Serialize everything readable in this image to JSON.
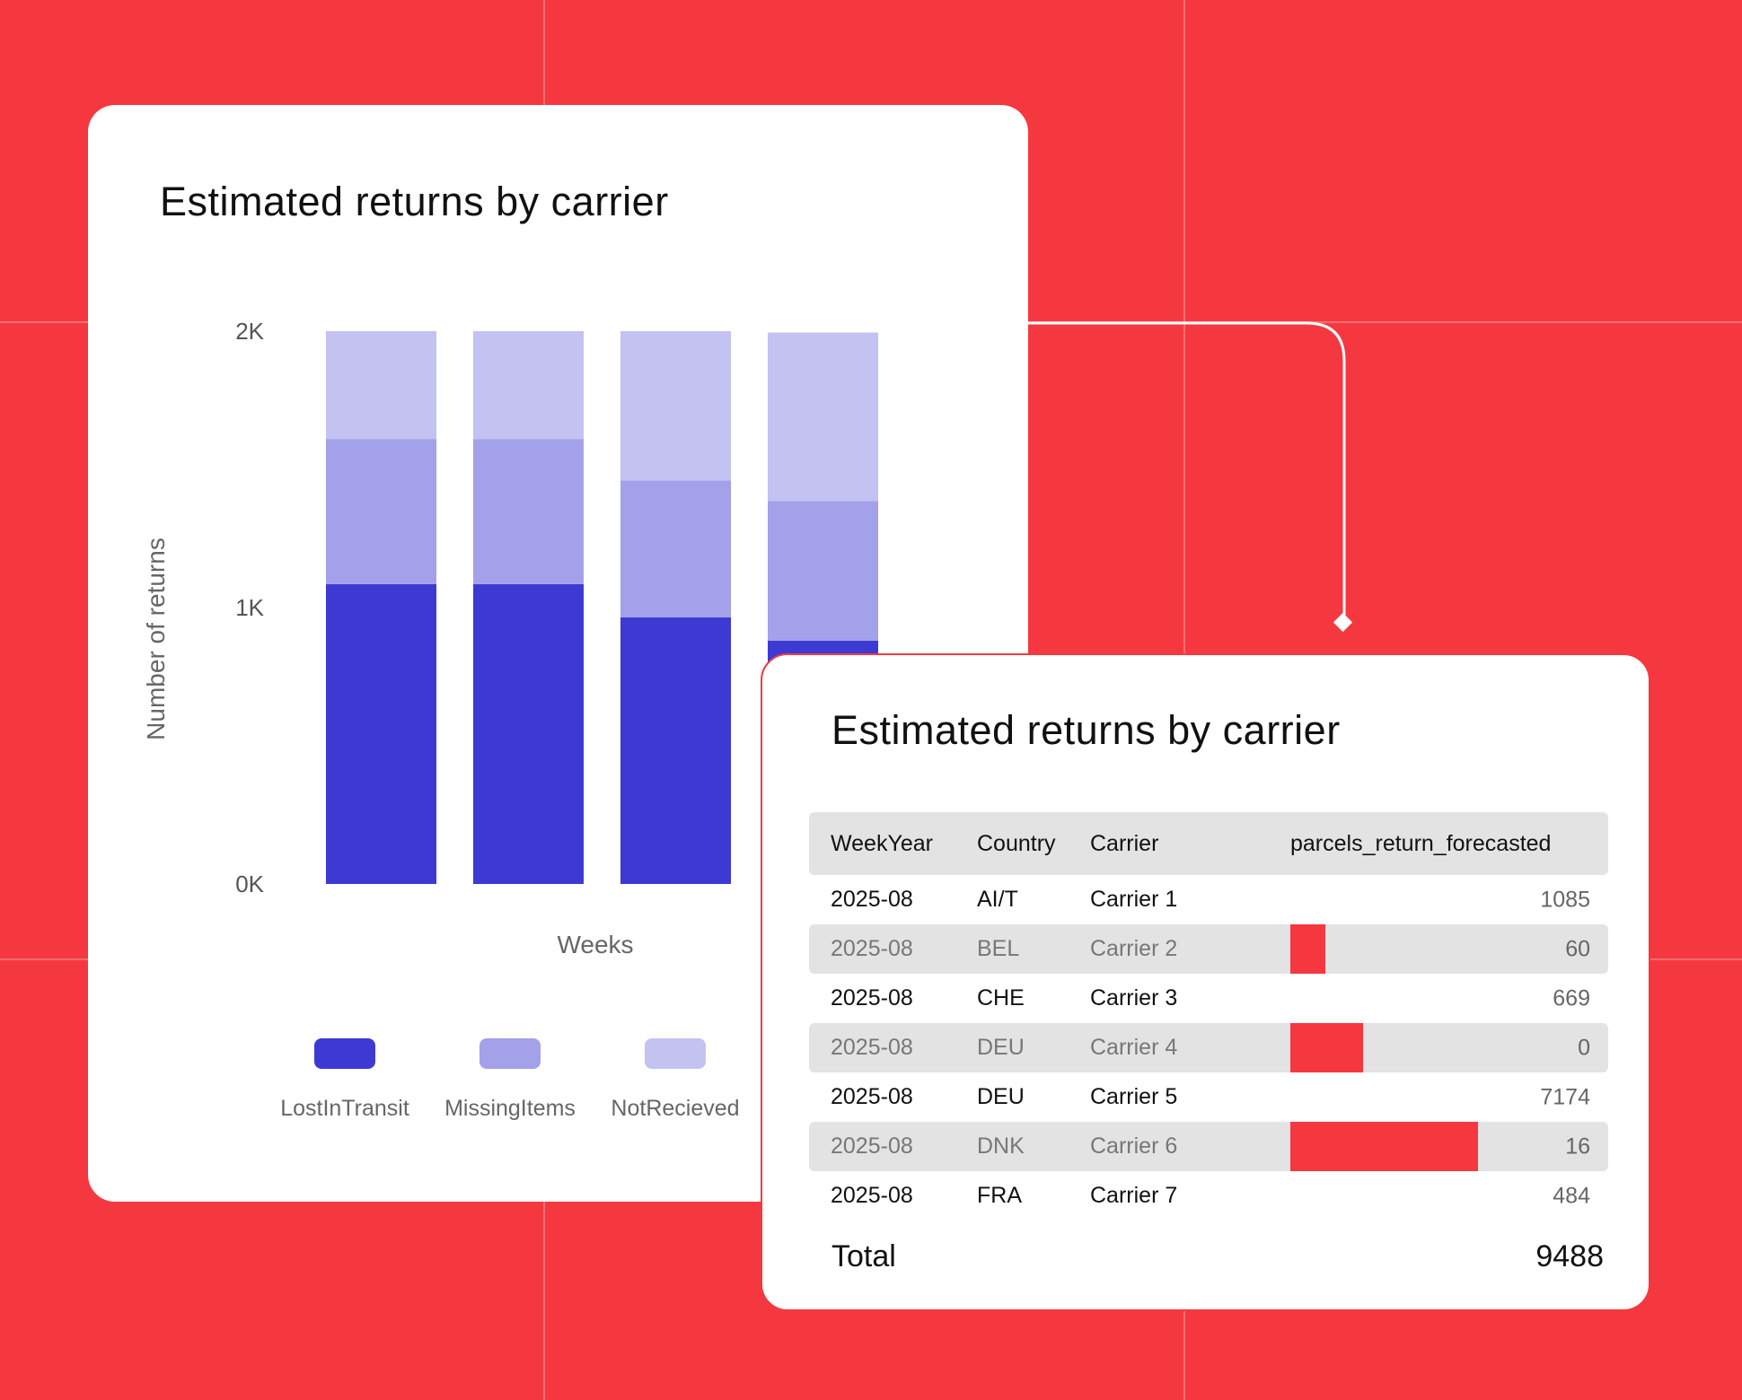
{
  "chart_card": {
    "title": "Estimated returns by carrier"
  },
  "chart_data": {
    "type": "bar",
    "stacked": true,
    "title": "Estimated returns by carrier",
    "xlabel": "Weeks",
    "ylabel": "Number of returns",
    "ylim": [
      0,
      2000
    ],
    "yticks": [
      {
        "value": 0,
        "label": "0K"
      },
      {
        "value": 1000,
        "label": "1K"
      },
      {
        "value": 2000,
        "label": "2K"
      }
    ],
    "categories": [
      "",
      "",
      "",
      ""
    ],
    "series": [
      {
        "name": "LostInTransit",
        "color": "#3d3ad4",
        "values": [
          1085,
          1085,
          965,
          880
        ]
      },
      {
        "name": "MissingItems",
        "color": "#a3a1ea",
        "values": [
          525,
          525,
          495,
          505
        ]
      },
      {
        "name": "NotRecieved",
        "color": "#c3c2f1",
        "values": [
          390,
          390,
          540,
          610
        ]
      }
    ],
    "legend": "bottom"
  },
  "table_card": {
    "title": "Estimated returns by carrier",
    "columns": [
      "WeekYear",
      "Country",
      "Carrier",
      "parcels_return_forecasted"
    ],
    "rows": [
      {
        "weekyear": "2025-08",
        "country": "AI/T",
        "carrier": "Carrier 1",
        "value": "1085",
        "bar_fraction": 0
      },
      {
        "weekyear": "2025-08",
        "country": "BEL",
        "carrier": "Carrier 2",
        "value": "60",
        "bar_fraction": 0.11
      },
      {
        "weekyear": "2025-08",
        "country": "CHE",
        "carrier": "Carrier 3",
        "value": "669",
        "bar_fraction": 0
      },
      {
        "weekyear": "2025-08",
        "country": "DEU",
        "carrier": "Carrier 4",
        "value": "0",
        "bar_fraction": 0.23
      },
      {
        "weekyear": "2025-08",
        "country": "DEU",
        "carrier": "Carrier 5",
        "value": "7174",
        "bar_fraction": 0
      },
      {
        "weekyear": "2025-08",
        "country": "DNK",
        "carrier": "Carrier 6",
        "value": "16",
        "bar_fraction": 0.59
      },
      {
        "weekyear": "2025-08",
        "country": "FRA",
        "carrier": "Carrier 7",
        "value": "484",
        "bar_fraction": 0
      }
    ],
    "total_label": "Total",
    "total_value": "9488",
    "bar_color": "#f5383f"
  },
  "colors": {
    "background": "#f5383f",
    "card": "#ffffff",
    "row_shade": "#e3e3e3"
  }
}
